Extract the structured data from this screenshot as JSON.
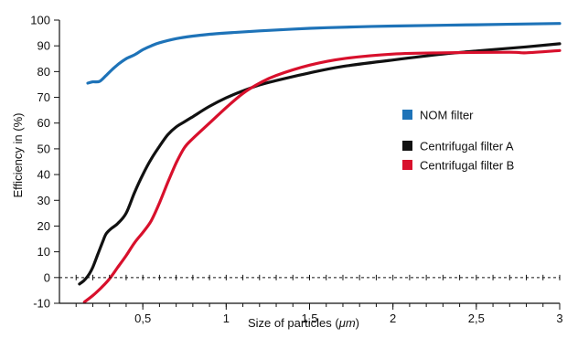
{
  "chart_data": {
    "type": "line",
    "title": "",
    "xlabel_prefix": "Size of particles (",
    "xlabel_unit": "μm",
    "xlabel_suffix": ")",
    "ylabel": "Efficiency in (%)",
    "xlim": [
      0,
      3
    ],
    "ylim": [
      -10,
      100
    ],
    "x_ticks": [
      {
        "value": 0.5,
        "label": "0,5"
      },
      {
        "value": 1,
        "label": "1"
      },
      {
        "value": 1.5,
        "label": "1,5"
      },
      {
        "value": 2,
        "label": "2"
      },
      {
        "value": 2.5,
        "label": "2,5"
      },
      {
        "value": 3,
        "label": "3"
      }
    ],
    "y_ticks": [
      {
        "value": -10,
        "label": "-10"
      },
      {
        "value": 0,
        "label": "0"
      },
      {
        "value": 10,
        "label": "10"
      },
      {
        "value": 20,
        "label": "20"
      },
      {
        "value": 30,
        "label": "30"
      },
      {
        "value": 40,
        "label": "40"
      },
      {
        "value": 50,
        "label": "50"
      },
      {
        "value": 60,
        "label": "60"
      },
      {
        "value": 70,
        "label": "70"
      },
      {
        "value": 80,
        "label": "80"
      },
      {
        "value": 90,
        "label": "90"
      },
      {
        "value": 100,
        "label": "100"
      }
    ],
    "x_minor_step": 0.1,
    "zero_line_dashed": true,
    "grid": false,
    "legend_position": "right",
    "series": [
      {
        "name": "NOM filter",
        "color": "#1e73b8",
        "points": [
          [
            0.17,
            75.5
          ],
          [
            0.2,
            76
          ],
          [
            0.24,
            76.2
          ],
          [
            0.28,
            78.5
          ],
          [
            0.32,
            81
          ],
          [
            0.36,
            83.2
          ],
          [
            0.4,
            85
          ],
          [
            0.45,
            86.5
          ],
          [
            0.5,
            88.5
          ],
          [
            0.55,
            90
          ],
          [
            0.6,
            91.2
          ],
          [
            0.7,
            92.8
          ],
          [
            0.8,
            93.8
          ],
          [
            0.9,
            94.5
          ],
          [
            1.0,
            95
          ],
          [
            1.2,
            95.8
          ],
          [
            1.5,
            96.8
          ],
          [
            1.8,
            97.4
          ],
          [
            2.0,
            97.7
          ],
          [
            2.5,
            98.2
          ],
          [
            3.0,
            98.7
          ]
        ]
      },
      {
        "name": "Centrifugal filter A",
        "color": "#111111",
        "points": [
          [
            0.12,
            -2.5
          ],
          [
            0.15,
            -1
          ],
          [
            0.18,
            1.5
          ],
          [
            0.2,
            4
          ],
          [
            0.23,
            9
          ],
          [
            0.26,
            14
          ],
          [
            0.28,
            17
          ],
          [
            0.31,
            19
          ],
          [
            0.35,
            21
          ],
          [
            0.4,
            25
          ],
          [
            0.45,
            33
          ],
          [
            0.5,
            40
          ],
          [
            0.55,
            46
          ],
          [
            0.6,
            51
          ],
          [
            0.65,
            55.5
          ],
          [
            0.7,
            58.5
          ],
          [
            0.75,
            60.5
          ],
          [
            0.8,
            62.5
          ],
          [
            0.9,
            66.5
          ],
          [
            1.0,
            69.8
          ],
          [
            1.1,
            72.5
          ],
          [
            1.2,
            74.8
          ],
          [
            1.3,
            76.5
          ],
          [
            1.5,
            79.5
          ],
          [
            1.7,
            82
          ],
          [
            2.0,
            84.5
          ],
          [
            2.3,
            86.8
          ],
          [
            2.5,
            88
          ],
          [
            2.8,
            89.6
          ],
          [
            3.0,
            90.8
          ]
        ]
      },
      {
        "name": "Centrifugal filter B",
        "color": "#d8102c",
        "points": [
          [
            0.15,
            -9.5
          ],
          [
            0.2,
            -7
          ],
          [
            0.25,
            -4
          ],
          [
            0.3,
            -0.5
          ],
          [
            0.35,
            4
          ],
          [
            0.4,
            8.5
          ],
          [
            0.45,
            13.5
          ],
          [
            0.5,
            17.5
          ],
          [
            0.55,
            22
          ],
          [
            0.6,
            29
          ],
          [
            0.65,
            37
          ],
          [
            0.7,
            44.5
          ],
          [
            0.75,
            50.5
          ],
          [
            0.8,
            54
          ],
          [
            0.9,
            60
          ],
          [
            1.0,
            66
          ],
          [
            1.1,
            71.5
          ],
          [
            1.2,
            75.5
          ],
          [
            1.3,
            78.5
          ],
          [
            1.5,
            82.5
          ],
          [
            1.7,
            85
          ],
          [
            2.0,
            86.8
          ],
          [
            2.3,
            87.3
          ],
          [
            2.7,
            87.5
          ],
          [
            2.8,
            87.3
          ],
          [
            3.0,
            88.2
          ]
        ]
      }
    ]
  }
}
